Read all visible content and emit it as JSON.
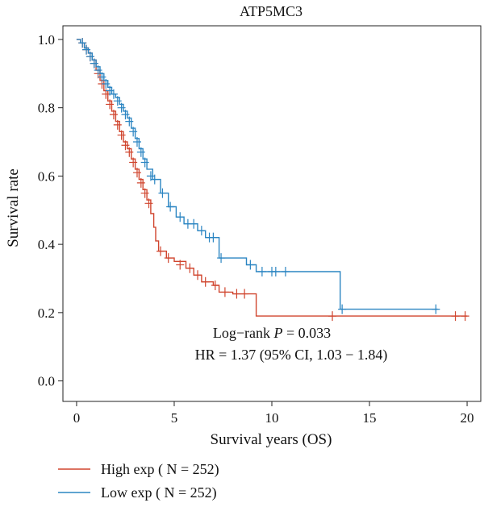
{
  "chart_data": {
    "type": "line",
    "title": "ATP5MC3",
    "xlabel": "Survival years (OS)",
    "ylabel": "Survival rate",
    "xlim": [
      -0.7,
      20.7
    ],
    "ylim": [
      -0.06,
      1.04
    ],
    "x_ticks": [
      0,
      5,
      10,
      15,
      20
    ],
    "y_ticks": [
      0.0,
      0.2,
      0.4,
      0.6,
      0.8,
      1.0
    ],
    "x_tick_labels": [
      "0",
      "5",
      "10",
      "15",
      "20"
    ],
    "y_tick_labels": [
      "0.0",
      "0.2",
      "0.4",
      "0.6",
      "0.8",
      "1.0"
    ],
    "grid": false,
    "legend_position": "bottom-left, below plot",
    "annotations": {
      "logrank_prefix": "Log−rank ",
      "logrank_p": "P",
      "logrank_value": " = 0.033",
      "hr": "HR = 1.37 (95% CI, 1.03 − 1.84)"
    },
    "series": [
      {
        "name": "High exp ( N = 252)",
        "color": "#d0452e",
        "steps": [
          [
            0,
            1.0
          ],
          [
            0.2,
            0.99
          ],
          [
            0.4,
            0.975
          ],
          [
            0.6,
            0.96
          ],
          [
            0.8,
            0.94
          ],
          [
            1.0,
            0.91
          ],
          [
            1.2,
            0.88
          ],
          [
            1.4,
            0.85
          ],
          [
            1.6,
            0.82
          ],
          [
            1.8,
            0.79
          ],
          [
            2.0,
            0.76
          ],
          [
            2.2,
            0.73
          ],
          [
            2.4,
            0.7
          ],
          [
            2.6,
            0.68
          ],
          [
            2.8,
            0.65
          ],
          [
            3.0,
            0.62
          ],
          [
            3.2,
            0.59
          ],
          [
            3.4,
            0.56
          ],
          [
            3.6,
            0.53
          ],
          [
            3.8,
            0.49
          ],
          [
            3.95,
            0.45
          ],
          [
            4.05,
            0.41
          ],
          [
            4.2,
            0.38
          ],
          [
            4.6,
            0.36
          ],
          [
            5.0,
            0.35
          ],
          [
            5.6,
            0.33
          ],
          [
            6.0,
            0.31
          ],
          [
            6.4,
            0.29
          ],
          [
            7.0,
            0.28
          ],
          [
            7.3,
            0.26
          ],
          [
            8.0,
            0.255
          ],
          [
            9.2,
            0.19
          ],
          [
            20.0,
            0.19
          ]
        ],
        "censors": [
          [
            0.3,
            0.99
          ],
          [
            0.5,
            0.97
          ],
          [
            0.7,
            0.95
          ],
          [
            0.9,
            0.93
          ],
          [
            1.1,
            0.9
          ],
          [
            1.3,
            0.87
          ],
          [
            1.5,
            0.84
          ],
          [
            1.7,
            0.81
          ],
          [
            1.9,
            0.78
          ],
          [
            2.1,
            0.75
          ],
          [
            2.3,
            0.72
          ],
          [
            2.5,
            0.69
          ],
          [
            2.7,
            0.67
          ],
          [
            2.9,
            0.64
          ],
          [
            3.1,
            0.61
          ],
          [
            3.3,
            0.58
          ],
          [
            3.5,
            0.55
          ],
          [
            3.7,
            0.52
          ],
          [
            4.3,
            0.38
          ],
          [
            4.7,
            0.36
          ],
          [
            5.3,
            0.34
          ],
          [
            5.8,
            0.33
          ],
          [
            6.2,
            0.31
          ],
          [
            6.6,
            0.29
          ],
          [
            7.1,
            0.28
          ],
          [
            7.6,
            0.26
          ],
          [
            8.2,
            0.255
          ],
          [
            8.6,
            0.255
          ],
          [
            13.1,
            0.19
          ],
          [
            19.4,
            0.19
          ],
          [
            19.9,
            0.19
          ]
        ]
      },
      {
        "name": "Low exp ( N = 252)",
        "color": "#2b85c2",
        "steps": [
          [
            0,
            1.0
          ],
          [
            0.2,
            0.99
          ],
          [
            0.4,
            0.975
          ],
          [
            0.6,
            0.96
          ],
          [
            0.8,
            0.94
          ],
          [
            1.0,
            0.92
          ],
          [
            1.2,
            0.9
          ],
          [
            1.4,
            0.88
          ],
          [
            1.6,
            0.86
          ],
          [
            1.8,
            0.84
          ],
          [
            2.0,
            0.83
          ],
          [
            2.2,
            0.81
          ],
          [
            2.4,
            0.79
          ],
          [
            2.6,
            0.77
          ],
          [
            2.8,
            0.74
          ],
          [
            3.0,
            0.71
          ],
          [
            3.2,
            0.68
          ],
          [
            3.4,
            0.65
          ],
          [
            3.6,
            0.62
          ],
          [
            3.9,
            0.59
          ],
          [
            4.3,
            0.55
          ],
          [
            4.7,
            0.51
          ],
          [
            5.1,
            0.48
          ],
          [
            5.5,
            0.46
          ],
          [
            6.2,
            0.44
          ],
          [
            6.6,
            0.42
          ],
          [
            7.3,
            0.36
          ],
          [
            8.7,
            0.34
          ],
          [
            9.2,
            0.32
          ],
          [
            13.5,
            0.21
          ],
          [
            18.5,
            0.21
          ]
        ],
        "censors": [
          [
            0.3,
            0.99
          ],
          [
            0.5,
            0.97
          ],
          [
            0.7,
            0.95
          ],
          [
            0.9,
            0.93
          ],
          [
            1.1,
            0.91
          ],
          [
            1.3,
            0.89
          ],
          [
            1.5,
            0.87
          ],
          [
            1.7,
            0.85
          ],
          [
            1.9,
            0.84
          ],
          [
            2.1,
            0.82
          ],
          [
            2.3,
            0.8
          ],
          [
            2.5,
            0.78
          ],
          [
            2.7,
            0.76
          ],
          [
            2.9,
            0.73
          ],
          [
            3.1,
            0.7
          ],
          [
            3.3,
            0.67
          ],
          [
            3.5,
            0.64
          ],
          [
            3.8,
            0.6
          ],
          [
            4.0,
            0.59
          ],
          [
            4.4,
            0.55
          ],
          [
            4.8,
            0.51
          ],
          [
            5.3,
            0.48
          ],
          [
            5.7,
            0.46
          ],
          [
            6.0,
            0.46
          ],
          [
            6.4,
            0.44
          ],
          [
            6.8,
            0.42
          ],
          [
            7.0,
            0.42
          ],
          [
            7.4,
            0.36
          ],
          [
            8.9,
            0.34
          ],
          [
            9.5,
            0.32
          ],
          [
            10.0,
            0.32
          ],
          [
            10.2,
            0.32
          ],
          [
            10.7,
            0.32
          ],
          [
            13.6,
            0.21
          ],
          [
            18.4,
            0.21
          ]
        ]
      }
    ]
  }
}
